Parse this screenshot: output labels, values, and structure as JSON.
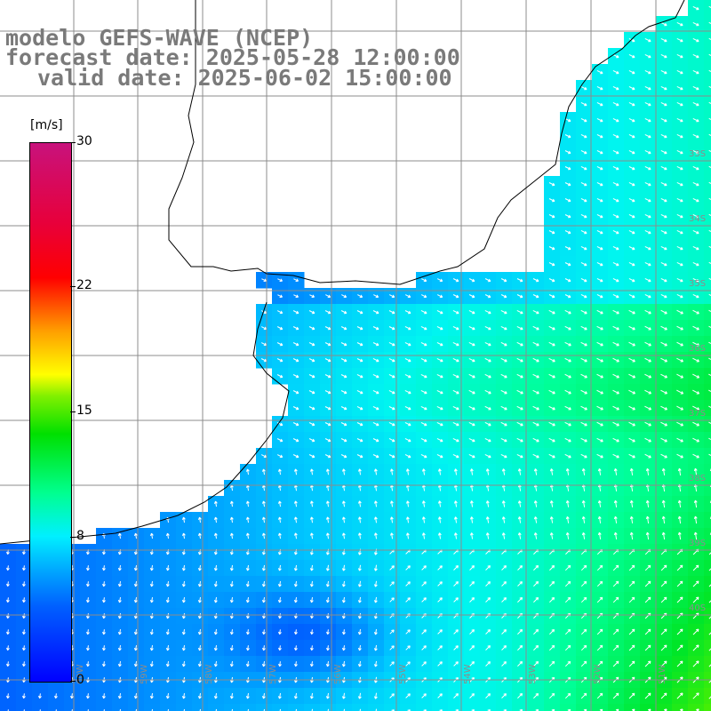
{
  "header": {
    "line1": "modelo GEFS-WAVE (NCEP)",
    "line2": "forecast date: 2025-05-28 12:00:00",
    "line3": "valid date: 2025-06-02 15:00:00"
  },
  "colorbar": {
    "unit": "[m/s]",
    "min": 0,
    "max": 30,
    "labels": [
      {
        "text": "30",
        "value": 30
      },
      {
        "text": "22",
        "value": 22
      },
      {
        "text": "15",
        "value": 15
      },
      {
        "text": "8",
        "value": 8
      },
      {
        "text": "0",
        "value": 0
      }
    ],
    "colors": [
      "#0000ff",
      "#00f0ff",
      "#00e000",
      "#ffff00",
      "#ff0000",
      "#c8127c"
    ]
  },
  "map": {
    "land_color": "#ffffff",
    "grid_color": "#8c8c8c",
    "lat_labels": [
      "33S",
      "34S",
      "35S",
      "36S",
      "37S",
      "38S",
      "39S",
      "40S"
    ],
    "lon_labels": [
      "60W",
      "59W",
      "58W",
      "57W",
      "56W",
      "55W",
      "54W",
      "53W",
      "52W",
      "51W"
    ]
  }
}
